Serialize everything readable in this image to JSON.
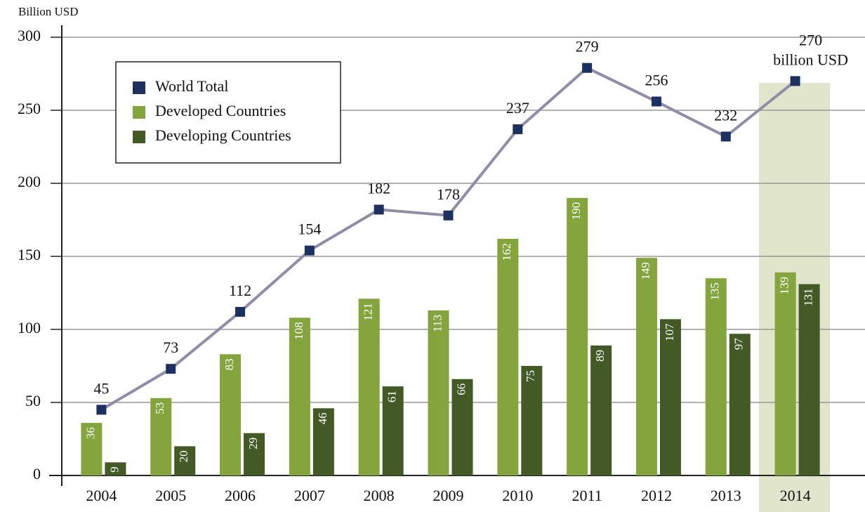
{
  "chart_data": {
    "type": "bar_line",
    "y_axis_label": "Billion USD",
    "categories": [
      "2004",
      "2005",
      "2006",
      "2007",
      "2008",
      "2009",
      "2010",
      "2011",
      "2012",
      "2013",
      "2014"
    ],
    "series": [
      {
        "name": "World Total",
        "type": "line",
        "color": "#1c3160",
        "line_color": "#8e8ea8",
        "values": [
          45,
          73,
          112,
          154,
          182,
          178,
          237,
          279,
          256,
          232,
          270
        ],
        "value_labels": [
          "45",
          "73",
          "112",
          "154",
          "182",
          "178",
          "237",
          "279",
          "256",
          "232",
          "270\nbillion USD"
        ]
      },
      {
        "name": "Developed Countries",
        "type": "bar",
        "color": "#84a53e",
        "values": [
          36,
          53,
          83,
          108,
          121,
          113,
          162,
          190,
          149,
          135,
          139
        ]
      },
      {
        "name": "Developing Countries",
        "type": "bar",
        "color": "#435a26",
        "values": [
          9,
          20,
          29,
          46,
          61,
          66,
          75,
          89,
          107,
          97,
          131
        ]
      }
    ],
    "ylim": [
      0,
      300
    ],
    "yticks": [
      0,
      50,
      100,
      150,
      200,
      250,
      300
    ],
    "grid": true,
    "legend": "upper left"
  }
}
